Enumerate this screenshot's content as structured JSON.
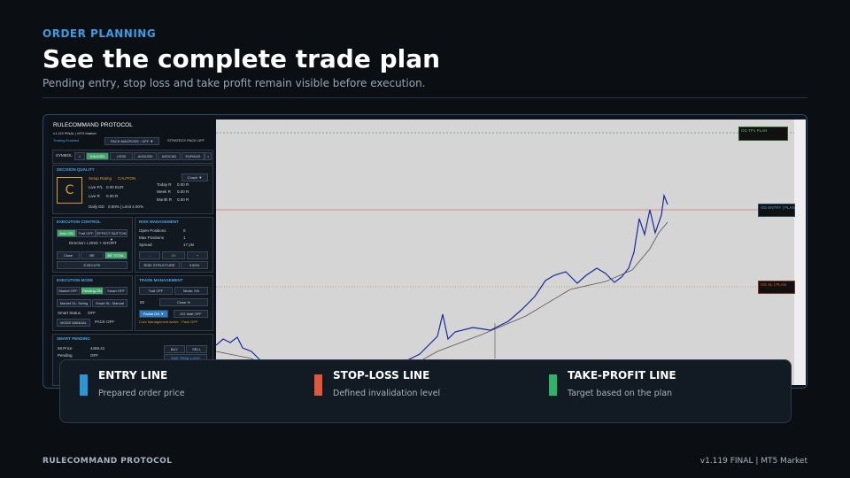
{
  "header": {
    "eyebrow": "ORDER PLANNING",
    "title": "See the complete trade plan",
    "subtitle": "Pending entry, stop loss and take profit remain visible before execution."
  },
  "panel": {
    "title": "RULECOMMAND PROTOCOL",
    "version": "v1.119 FINAL | MT5 Market",
    "status": "Trading Enabled",
    "pack_macross": "PACK MACROSS : OFF ▼",
    "strategy_pack": "STRATEGY PACK OFF",
    "symbols": {
      "label": "SYMBOL",
      "prev": "<",
      "next": ">",
      "items": [
        "XAUUSD",
        "US30",
        "AUDUSD",
        "NZDCAD",
        "EURAUD"
      ]
    },
    "decision_quality": {
      "title": "DECISION QUALITY",
      "grade": "C",
      "coach": "Coach ▼",
      "rows": [
        [
          "Setup Rating",
          "CAUTION"
        ],
        [
          "Live P/L",
          "0.00 EUR"
        ],
        [
          "Live R",
          "0.00 R"
        ],
        [
          "Daily DD",
          "0.00% | Limit 4.00%"
        ]
      ],
      "stats": [
        [
          "Today R",
          "0.00 R"
        ],
        [
          "Week R",
          "0.00 R"
        ],
        [
          "Month R",
          "0.00 R"
        ]
      ]
    },
    "execution_control": {
      "title": "EXECUTION CONTROL",
      "auto": "Auto ON",
      "trail": "Trail OFF",
      "effect": "EFFECT BUTTON ▼",
      "direction": "Direction: LONG + SHORT",
      "close": "Close",
      "be": "BE",
      "be_total": "BE TOTAL",
      "execute": "EXECUTE"
    },
    "risk_management": {
      "title": "RISK MANAGEMENT",
      "rows": [
        [
          "Open Positions",
          "0"
        ],
        [
          "Max Positions",
          "1"
        ],
        [
          "Spread",
          "17 pts"
        ]
      ],
      "minus": "-",
      "ok": "OK",
      "plus": "+",
      "structure": "RISK STRUCTURE",
      "risk": "0.50%"
    },
    "execution_mode": {
      "title": "EXECUTION MODE",
      "market": "Market OFF",
      "pending": "Pending ON",
      "smart": "Smart OFF",
      "market_sl": "Market SL: Swing",
      "smart_sl": "Smart SL: Manual",
      "smart_status": "Smart Status",
      "smart_status_value": "OFF",
      "mode": "MODE MANUAL",
      "pack": "PACK OFF"
    },
    "trade_management": {
      "title": "TRADE MANAGEMENT",
      "trail": "Trail OFF",
      "mode": "Mode: HA",
      "partial_value": "50",
      "close_pct": "Close %",
      "partial": "Partial ON ▼",
      "dg_wait": "DG Wait OFF",
      "note": "Core Management active · Pack OFF"
    },
    "smart_pending": {
      "title": "SMART PENDING",
      "price_label": "Mr.Price",
      "price": "4469.41",
      "pending_label": "Pending",
      "pending": "OFF",
      "buy": "BUY",
      "sell": "SELL",
      "lock": "SIZE TRAIL LOCK"
    }
  },
  "chart_labels": {
    "tp": "OG TP1 PLAN",
    "entry": "OG ENTRY | PLAN",
    "sl": "OG SL | PLAN"
  },
  "legend": [
    {
      "title": "ENTRY LINE",
      "description": "Prepared order price"
    },
    {
      "title": "STOP-LOSS LINE",
      "description": "Defined invalidation level"
    },
    {
      "title": "TAKE-PROFIT LINE",
      "description": "Target based on the plan"
    }
  ],
  "footer": {
    "brand": "RULECOMMAND PROTOCOL",
    "version": "v1.119 FINAL | MT5 Market"
  }
}
